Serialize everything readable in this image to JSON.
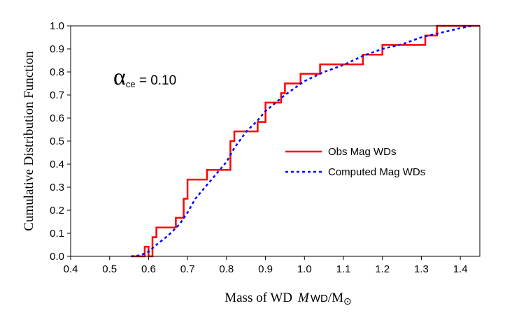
{
  "chart_data": {
    "type": "line",
    "xlabel_parts": {
      "prefix": "Mass of WD",
      "var": "M",
      "sub": "WD",
      "suffix": "/M",
      "sun": "⊙"
    },
    "ylabel": "Cumulative Distribution Function",
    "xlim": [
      0.4,
      1.45
    ],
    "ylim": [
      0.0,
      1.0
    ],
    "xticks": [
      "0.4",
      "0.5",
      "0.6",
      "0.7",
      "0.8",
      "0.9",
      "1.0",
      "1.1",
      "1.2",
      "1.3",
      "1.4"
    ],
    "yticks": [
      "0.0",
      "0.1",
      "0.2",
      "0.3",
      "0.4",
      "0.5",
      "0.6",
      "0.7",
      "0.8",
      "0.9",
      "1.0"
    ],
    "grid": false,
    "legend_position": "center-right",
    "annotation": {
      "symbol": "α",
      "sub": "ce",
      "value": " = 0.10"
    },
    "series": [
      {
        "name": "Obs Mag WDs",
        "color": "#ff0000",
        "style": "step",
        "x": [
          0.555,
          0.59,
          0.59,
          0.6,
          0.6,
          0.61,
          0.61,
          0.62,
          0.62,
          0.67,
          0.67,
          0.69,
          0.69,
          0.7,
          0.7,
          0.75,
          0.75,
          0.81,
          0.81,
          0.82,
          0.82,
          0.88,
          0.88,
          0.9,
          0.9,
          0.94,
          0.94,
          0.95,
          0.95,
          0.99,
          0.99,
          1.04,
          1.04,
          1.15,
          1.15,
          1.2,
          1.2,
          1.31,
          1.31,
          1.34,
          1.34,
          1.45
        ],
        "y": [
          0.0,
          0.0,
          0.042,
          0.042,
          0.0,
          0.0,
          0.083,
          0.083,
          0.125,
          0.125,
          0.167,
          0.167,
          0.25,
          0.25,
          0.333,
          0.333,
          0.375,
          0.375,
          0.5,
          0.5,
          0.542,
          0.542,
          0.583,
          0.583,
          0.667,
          0.667,
          0.708,
          0.708,
          0.75,
          0.75,
          0.792,
          0.792,
          0.833,
          0.833,
          0.875,
          0.875,
          0.917,
          0.917,
          0.958,
          0.958,
          1.0,
          1.0
        ]
      },
      {
        "name": "Computed Mag WDs",
        "color": "#0000ff",
        "style": "dotted",
        "x": [
          0.555,
          0.58,
          0.6,
          0.62,
          0.65,
          0.68,
          0.7,
          0.72,
          0.75,
          0.78,
          0.8,
          0.82,
          0.85,
          0.88,
          0.9,
          0.95,
          1.0,
          1.05,
          1.1,
          1.15,
          1.2,
          1.25,
          1.3,
          1.35,
          1.4,
          1.43
        ],
        "y": [
          0.0,
          0.005,
          0.02,
          0.05,
          0.09,
          0.14,
          0.19,
          0.25,
          0.31,
          0.37,
          0.41,
          0.47,
          0.54,
          0.59,
          0.63,
          0.7,
          0.76,
          0.8,
          0.83,
          0.87,
          0.9,
          0.92,
          0.95,
          0.97,
          0.99,
          1.0
        ]
      }
    ]
  }
}
